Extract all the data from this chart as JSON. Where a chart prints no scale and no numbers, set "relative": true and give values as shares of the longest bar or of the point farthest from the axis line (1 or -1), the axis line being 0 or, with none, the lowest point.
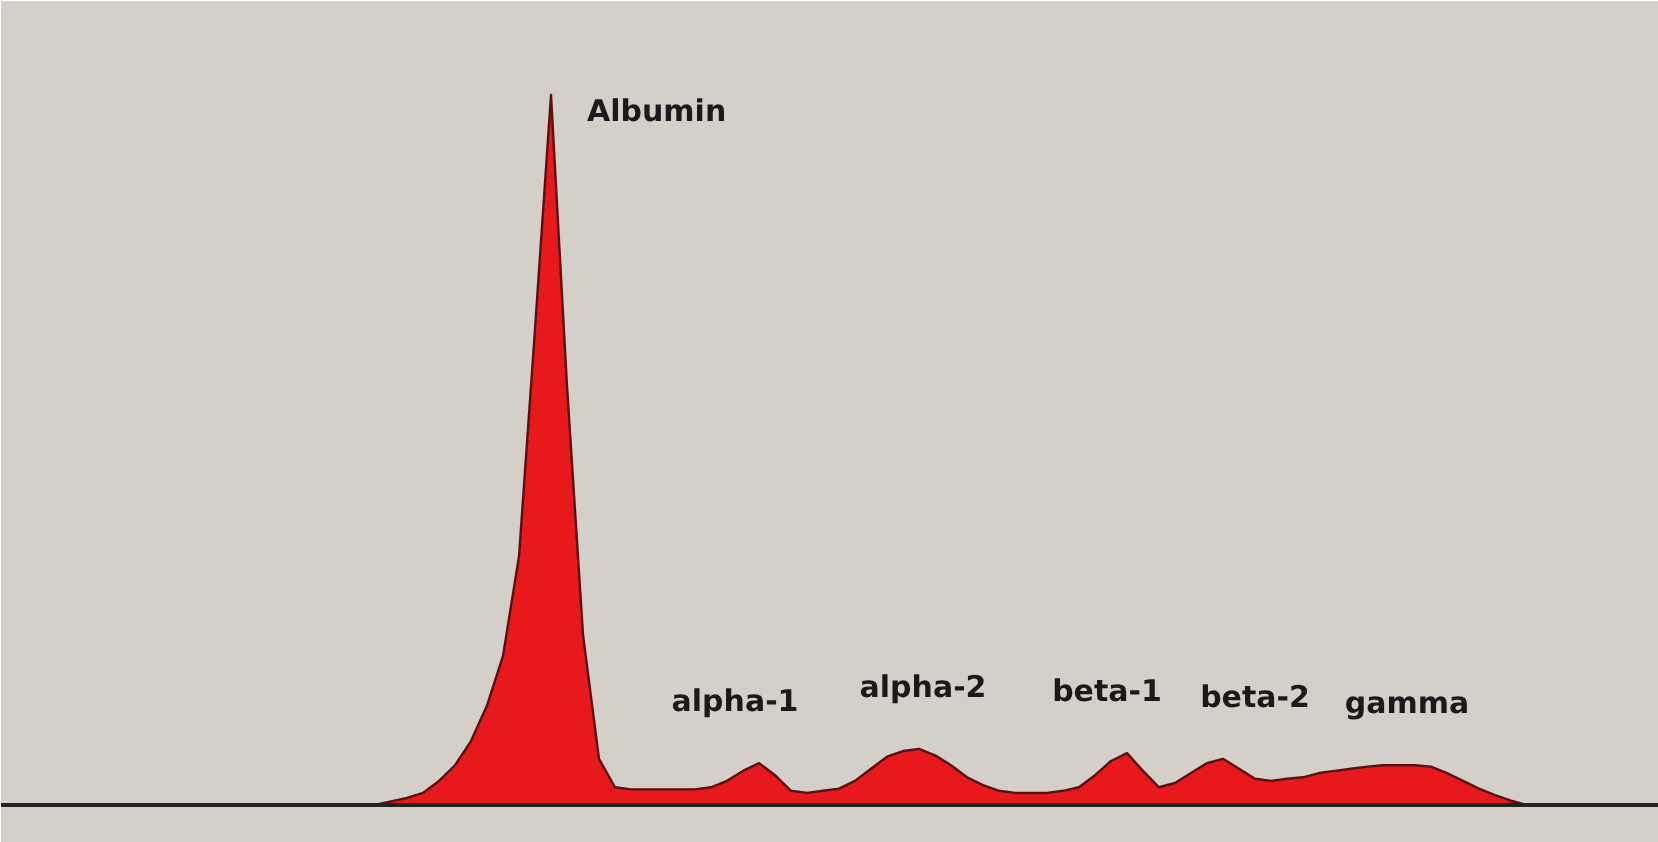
{
  "chart_data": {
    "type": "area",
    "relative": true,
    "grid": false,
    "categories": [
      null,
      null,
      null,
      null,
      null,
      null,
      null,
      null,
      null,
      null,
      null,
      null,
      null,
      null,
      null,
      null,
      null,
      null,
      null,
      null,
      null,
      null,
      null,
      null,
      null,
      null,
      null,
      null,
      null,
      null,
      null,
      null,
      null,
      null,
      null,
      null,
      null,
      null,
      null,
      null,
      null,
      null,
      null,
      null,
      null,
      null,
      null,
      null,
      null,
      null,
      null,
      null,
      null,
      null,
      null,
      null,
      null,
      null,
      null,
      null,
      null,
      null,
      null,
      null,
      null,
      null,
      null,
      null,
      null,
      null,
      null,
      null,
      null,
      null,
      null,
      null,
      null,
      null,
      null,
      null,
      null,
      null,
      null,
      null,
      null,
      null,
      null,
      null,
      null,
      null,
      null,
      null
    ],
    "series": [
      {
        "color": "#e8191c",
        "values": [
          0,
          0,
          0,
          0,
          0,
          0,
          0,
          0,
          0,
          0,
          0,
          0,
          0,
          0,
          0,
          0,
          0,
          0,
          0,
          0,
          0.005,
          0.01,
          0.017,
          0.034,
          0.056,
          0.09,
          0.14,
          0.21,
          0.35,
          0.67,
          1,
          0.59,
          0.24,
          0.065,
          0.025,
          0.022,
          0.022,
          0.022,
          0.022,
          0.022,
          0.025,
          0.034,
          0.048,
          0.059,
          0.042,
          0.02,
          0.017,
          0.02,
          0.023,
          0.034,
          0.051,
          0.068,
          0.076,
          0.079,
          0.07,
          0.056,
          0.039,
          0.028,
          0.02,
          0.017,
          0.017,
          0.017,
          0.02,
          0.025,
          0.042,
          0.062,
          0.073,
          0.048,
          0.025,
          0.031,
          0.045,
          0.059,
          0.065,
          0.051,
          0.037,
          0.034,
          0.037,
          0.039,
          0.045,
          0.048,
          0.051,
          0.054,
          0.056,
          0.056,
          0.056,
          0.054,
          0.045,
          0.034,
          0.023,
          0.014,
          0.006,
          0
        ]
      }
    ],
    "annotations": [
      "Albumin",
      "alpha-1",
      "alpha-2",
      "beta-1",
      "beta-2",
      "gamma"
    ]
  }
}
